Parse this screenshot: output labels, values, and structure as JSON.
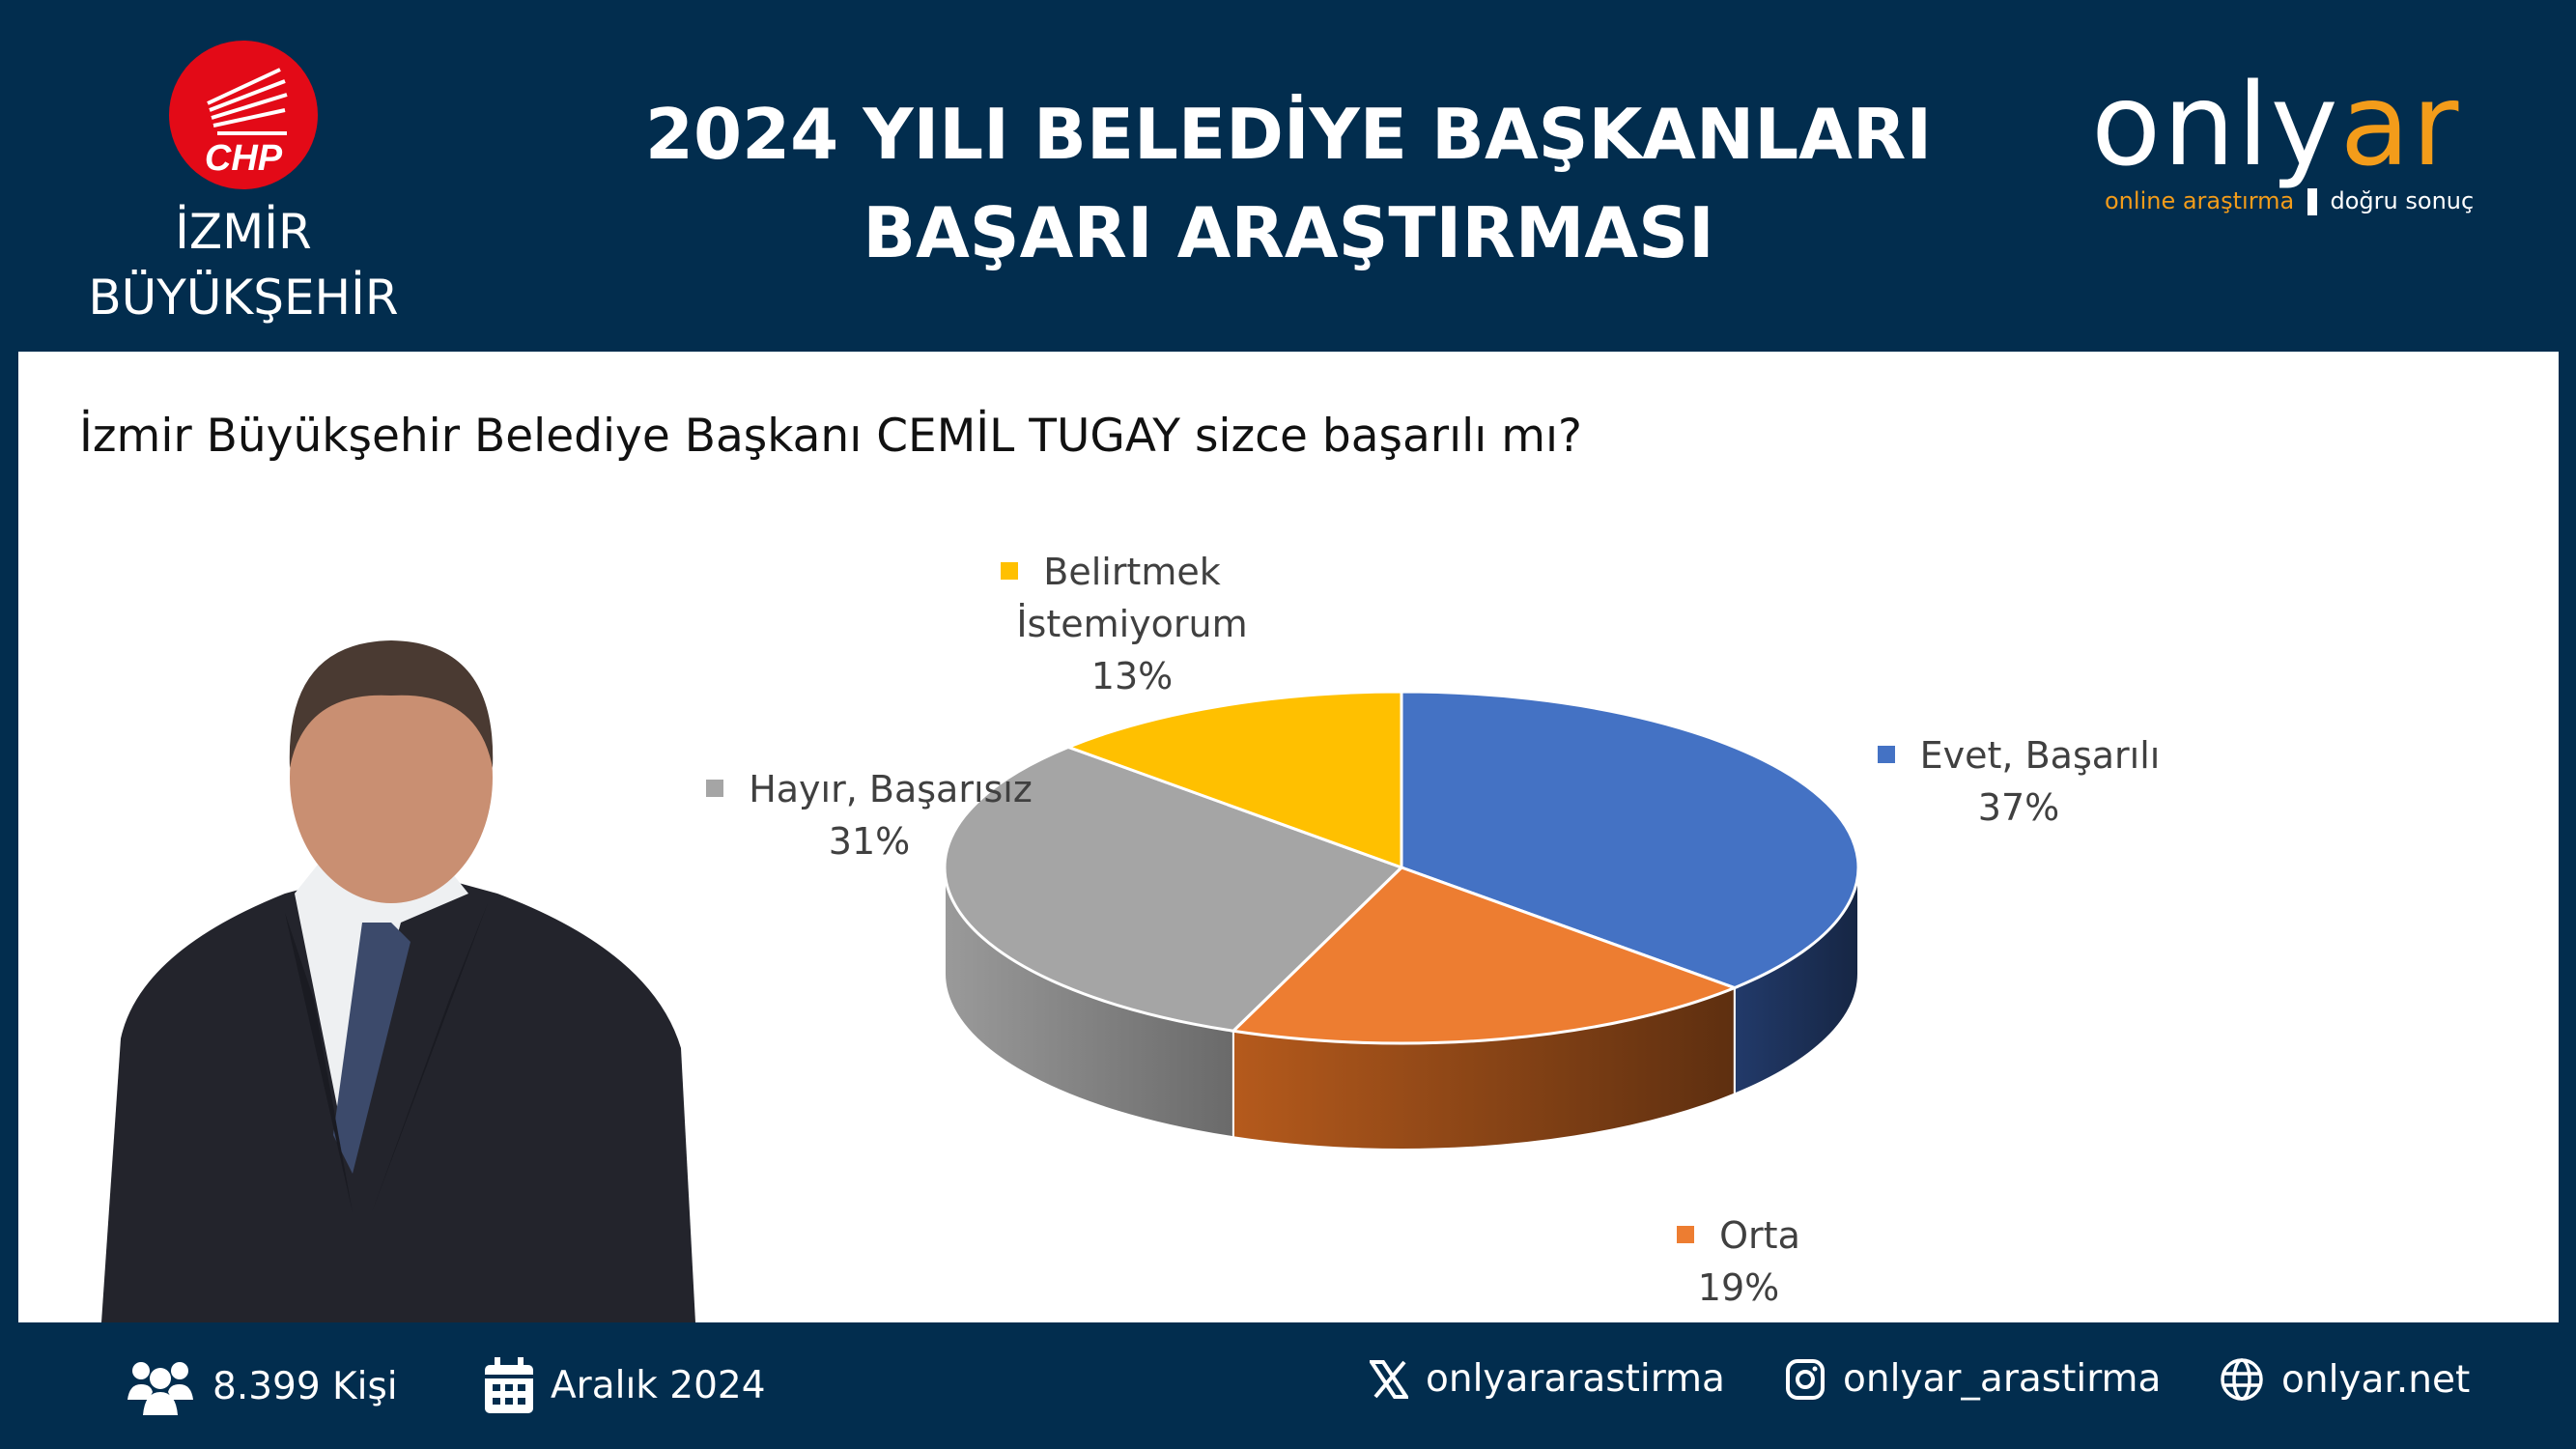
{
  "header": {
    "party_logo_text": "CHP",
    "city_line1": "İZMİR",
    "city_line2": "BÜYÜKŞEHİR",
    "title_line1": "2024 YILI BELEDİYE BAŞKANLARI",
    "title_line2": "BAŞARI ARAŞTIRMASI",
    "brand_logo": {
      "main_white": "only",
      "main_orange": "ar",
      "tagline_left": "online araştırma",
      "tagline_right": "doğru sonuç"
    }
  },
  "question": "İzmir Büyükşehir Belediye Başkanı CEMİL TUGAY sizce başarılı mı?",
  "chart_data": {
    "type": "pie",
    "style": "3d",
    "start": "top, clockwise",
    "slices": [
      {
        "label": "Evet, Başarılı",
        "value": 37,
        "display": "37%",
        "color": "#4472c4"
      },
      {
        "label": "Orta",
        "value": 19,
        "display": "19%",
        "color": "#ed7d31"
      },
      {
        "label": "Hayır, Başarısız",
        "value": 31,
        "display": "31%",
        "color": "#a5a5a5"
      },
      {
        "label_line1": "Belirtmek",
        "label_line2": "İstemiyorum",
        "label": "Belirtmek İstemiyorum",
        "value": 13,
        "display": "13%",
        "color": "#ffc000"
      }
    ]
  },
  "footer": {
    "sample": "8.399 Kişi",
    "date": "Aralık 2024",
    "x_handle": "onlyararastirma",
    "instagram": "onlyar_arastirma",
    "website": "onlyar.net"
  },
  "colors": {
    "background": "#022d4e",
    "brand_orange": "#f39c1a",
    "party_red": "#e30a17"
  }
}
